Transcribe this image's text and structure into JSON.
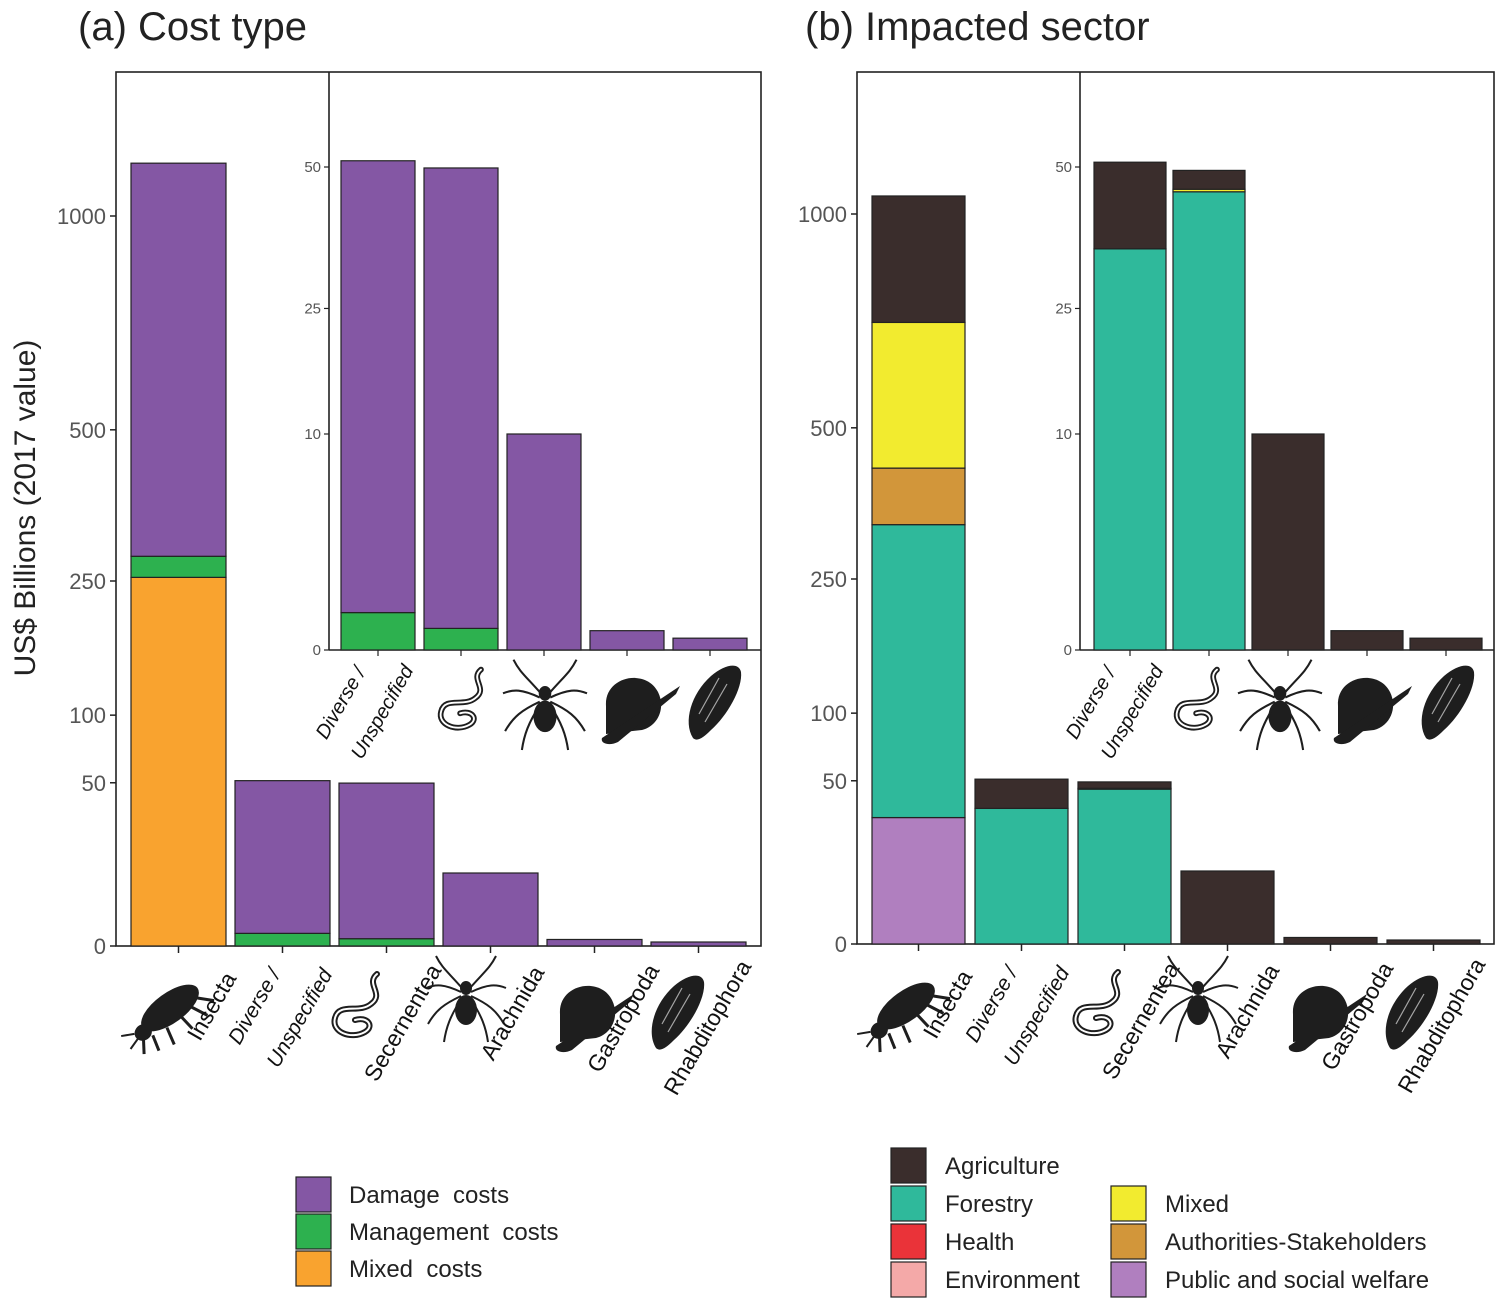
{
  "figure": {
    "ylabel": "US$ Billions (2017 value)",
    "panels": [
      {
        "title": "(a) Cost type"
      },
      {
        "title": "(b) Impacted sector"
      }
    ]
  },
  "icons": {
    "Insecta": "beetle-silhouette",
    "Secernentea": "nematode-silhouette",
    "Arachnida": "spider-silhouette",
    "Gastropoda": "snail-silhouette",
    "Rhabditophora": "flatworm-silhouette"
  },
  "chart_data": [
    {
      "type": "bar",
      "stacked": true,
      "title": "(a) Cost type",
      "ylabel": "US$ Billions (2017 value)",
      "y_scale": "sqrt",
      "yticks": [
        0,
        50,
        100,
        250,
        500,
        1000
      ],
      "categories": [
        "Insecta",
        "Diverse / Unspecified",
        "Secernentea",
        "Arachnida",
        "Gastropoda",
        "Rhabditophora"
      ],
      "series": [
        {
          "name": "Mixed costs",
          "color": "#f9a32f",
          "values": [
            255,
            0,
            0,
            0,
            0,
            0
          ]
        },
        {
          "name": "Management costs",
          "color": "#2db14f",
          "values": [
            30,
            0.3,
            0.1,
            0,
            0,
            0
          ]
        },
        {
          "name": "Damage costs",
          "color": "#8457a4",
          "values": [
            865,
            51,
            49.7,
            10,
            0.08,
            0.03
          ]
        }
      ],
      "inset": {
        "categories": [
          "Diverse / Unspecified",
          "Secernentea",
          "Arachnida",
          "Gastropoda",
          "Rhabditophora"
        ],
        "yticks": [
          0,
          10,
          25,
          50
        ],
        "y_scale": "sqrt"
      },
      "legend": {
        "position": "bottom",
        "entries": [
          {
            "label": "Damage  costs",
            "color": "#8457a4"
          },
          {
            "label": "Management  costs",
            "color": "#2db14f"
          },
          {
            "label": "Mixed  costs",
            "color": "#f9a32f"
          }
        ]
      }
    },
    {
      "type": "bar",
      "stacked": true,
      "title": "(b) Impacted sector",
      "y_scale": "sqrt",
      "yticks": [
        0,
        50,
        100,
        250,
        500,
        1000
      ],
      "categories": [
        "Insecta",
        "Diverse / Unspecified",
        "Secernentea",
        "Arachnida",
        "Gastropoda",
        "Rhabditophora"
      ],
      "series": [
        {
          "name": "Public and social welfare",
          "color": "#b07fbf",
          "values": [
            30,
            0,
            0,
            0,
            0,
            0
          ]
        },
        {
          "name": "Forestry",
          "color": "#2fb99b",
          "values": [
            300,
            34.5,
            45,
            0,
            0,
            0
          ]
        },
        {
          "name": "Authorities-Stakeholders",
          "color": "#d2963a",
          "values": [
            95,
            0,
            0,
            0,
            0,
            0
          ]
        },
        {
          "name": "Mixed",
          "color": "#f2eb2f",
          "values": [
            300,
            0,
            0.5,
            0,
            0,
            0
          ]
        },
        {
          "name": "Agriculture",
          "color": "#3a2d2c",
          "values": [
            325,
            16.5,
            3.8,
            10,
            0.08,
            0.03
          ]
        }
      ],
      "inset": {
        "categories": [
          "Diverse / Unspecified",
          "Secernentea",
          "Arachnida",
          "Gastropoda",
          "Rhabditophora"
        ],
        "yticks": [
          0,
          10,
          25,
          50
        ],
        "y_scale": "sqrt"
      },
      "legend": {
        "position": "bottom",
        "entries": [
          {
            "label": "Agriculture",
            "color": "#3a2d2c"
          },
          {
            "label": "Forestry",
            "color": "#2fb99b"
          },
          {
            "label": "Health",
            "color": "#ea3339"
          },
          {
            "label": "Environment",
            "color": "#f4a9a8"
          },
          {
            "label": "Mixed",
            "color": "#f2eb2f"
          },
          {
            "label": "Authorities-Stakeholders",
            "color": "#d2963a"
          },
          {
            "label": "Public and social welfare",
            "color": "#b07fbf"
          }
        ]
      }
    }
  ]
}
